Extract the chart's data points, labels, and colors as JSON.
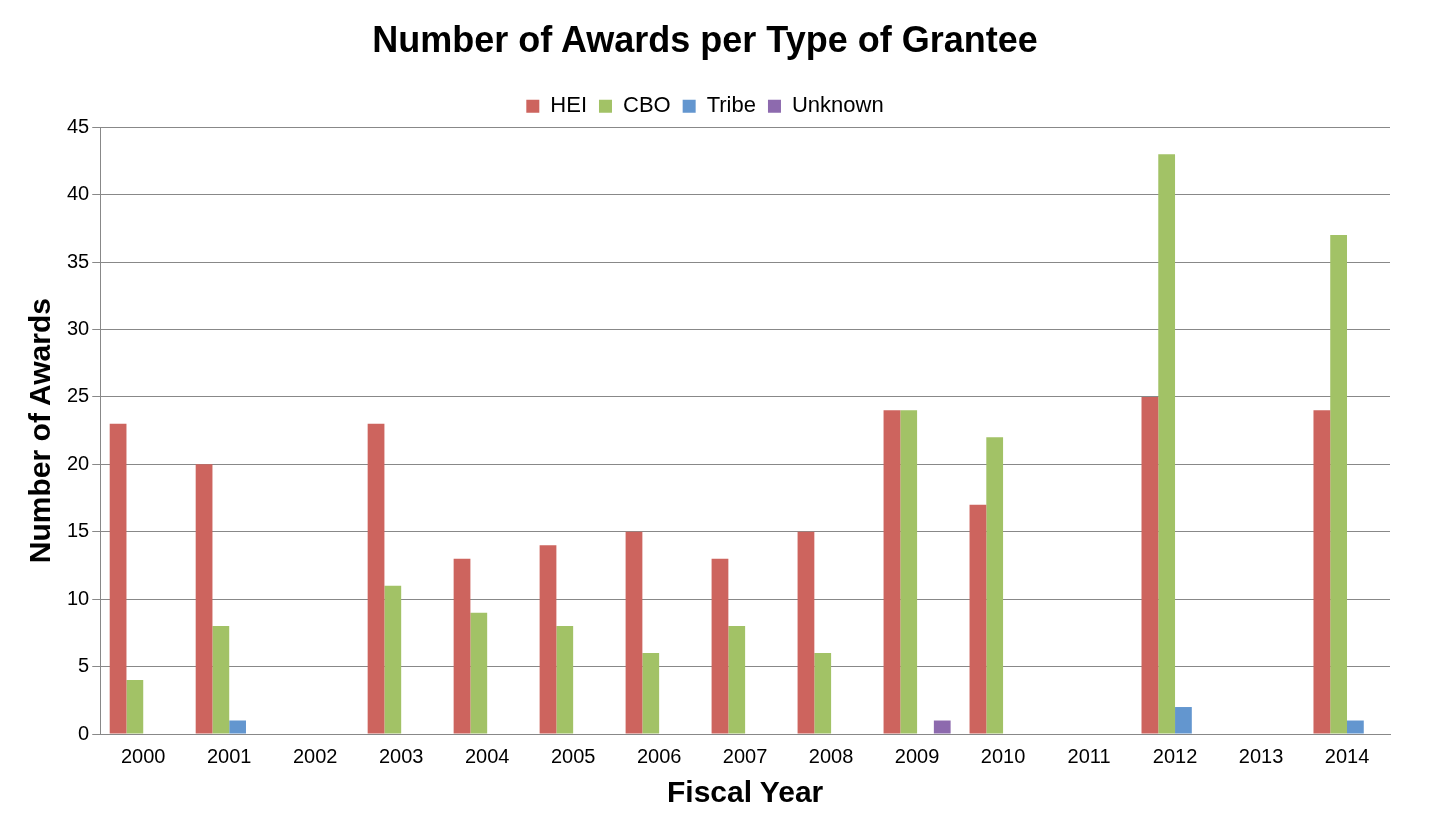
{
  "chart_data": {
    "type": "bar",
    "title": "Number of Awards per Type of Grantee",
    "xlabel": "Fiscal Year",
    "ylabel": "Number of Awards",
    "categories": [
      "2000",
      "2001",
      "2002",
      "2003",
      "2004",
      "2005",
      "2006",
      "2007",
      "2008",
      "2009",
      "2010",
      "2011",
      "2012",
      "2013",
      "2014"
    ],
    "series": [
      {
        "name": "HEI",
        "color": "#cd645e",
        "values": [
          23,
          20,
          0,
          23,
          13,
          14,
          15,
          13,
          15,
          24,
          17,
          0,
          25,
          0,
          24
        ]
      },
      {
        "name": "CBO",
        "color": "#a2c266",
        "values": [
          4,
          8,
          0,
          11,
          9,
          8,
          6,
          8,
          6,
          24,
          22,
          0,
          43,
          0,
          37
        ]
      },
      {
        "name": "Tribe",
        "color": "#6396cf",
        "values": [
          0,
          1,
          0,
          0,
          0,
          0,
          0,
          0,
          0,
          0,
          0,
          0,
          2,
          0,
          1
        ]
      },
      {
        "name": "Unknown",
        "color": "#8d6aae",
        "values": [
          0,
          0,
          0,
          0,
          0,
          0,
          0,
          0,
          0,
          1,
          0,
          0,
          0,
          0,
          0
        ]
      }
    ],
    "ylim": [
      0,
      45
    ],
    "yticks": [
      0,
      5,
      10,
      15,
      20,
      25,
      30,
      35,
      40,
      45
    ],
    "grid": "y",
    "legend": "top"
  }
}
